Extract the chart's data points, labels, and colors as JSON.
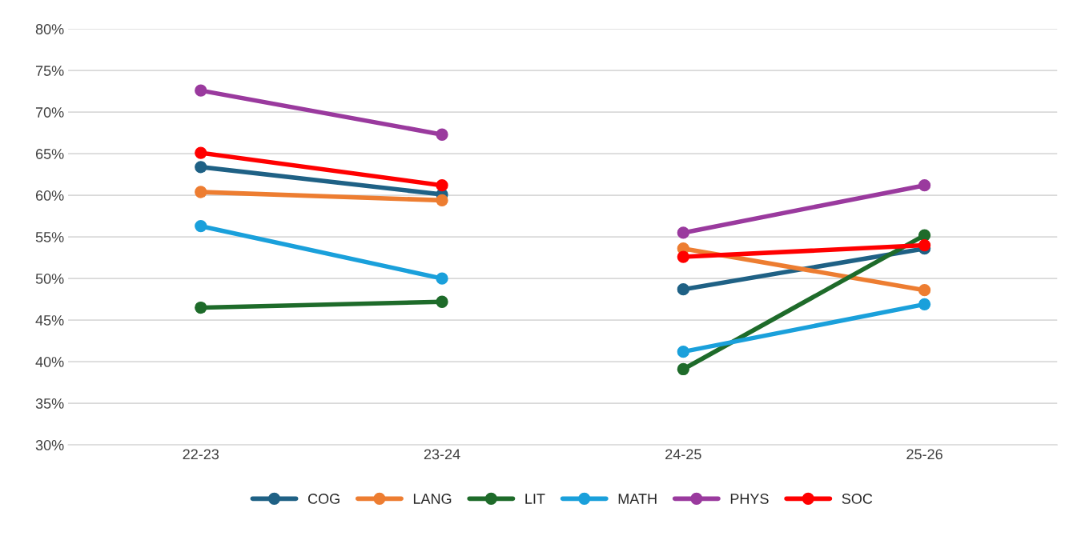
{
  "chart_data": {
    "type": "line",
    "categories": [
      "22-23",
      "23-24",
      "24-25",
      "25-26"
    ],
    "series": [
      {
        "name": "COG",
        "color": "#1f6185",
        "values": [
          63.4,
          60.1,
          null,
          null
        ]
      },
      {
        "name": "LANG",
        "color": "#ed7d31",
        "values": [
          60.4,
          59.4,
          null,
          null
        ]
      },
      {
        "name": "LIT",
        "color": "#1e6b2a",
        "values": [
          46.5,
          47.2,
          null,
          null
        ]
      },
      {
        "name": "MATH",
        "color": "#1aa0db",
        "values": [
          56.3,
          50.0,
          null,
          null
        ]
      },
      {
        "name": "PHYS",
        "color": "#9a3a9e",
        "values": [
          72.6,
          67.3,
          null,
          null
        ]
      },
      {
        "name": "SOC",
        "color": "#ff0000",
        "values": [
          65.1,
          61.2,
          null,
          null
        ]
      },
      {
        "color": "#1f6185",
        "values": [
          null,
          null,
          48.7,
          53.6
        ]
      },
      {
        "color": "#ed7d31",
        "values": [
          null,
          null,
          53.6,
          48.6
        ]
      },
      {
        "color": "#1e6b2a",
        "values": [
          null,
          null,
          39.1,
          55.2
        ]
      },
      {
        "color": "#1aa0db",
        "values": [
          null,
          null,
          41.2,
          46.9
        ]
      },
      {
        "color": "#9a3a9e",
        "values": [
          null,
          null,
          55.5,
          61.2
        ]
      },
      {
        "color": "#ff0000",
        "values": [
          null,
          null,
          52.6,
          54.0
        ]
      }
    ],
    "ylim": [
      30,
      80
    ],
    "yticks": [
      {
        "value": 30,
        "label": "30%"
      },
      {
        "value": 35,
        "label": "35%"
      },
      {
        "value": 40,
        "label": "40%"
      },
      {
        "value": 45,
        "label": "45%"
      },
      {
        "value": 50,
        "label": "50%"
      },
      {
        "value": 55,
        "label": "55%"
      },
      {
        "value": 60,
        "label": "60%"
      },
      {
        "value": 65,
        "label": "65%"
      },
      {
        "value": 70,
        "label": "70%"
      },
      {
        "value": 75,
        "label": "75%"
      },
      {
        "value": 80,
        "label": "80%"
      }
    ],
    "grid": "y",
    "legend": "bottom",
    "marker": "circle",
    "line_style": "solid"
  }
}
